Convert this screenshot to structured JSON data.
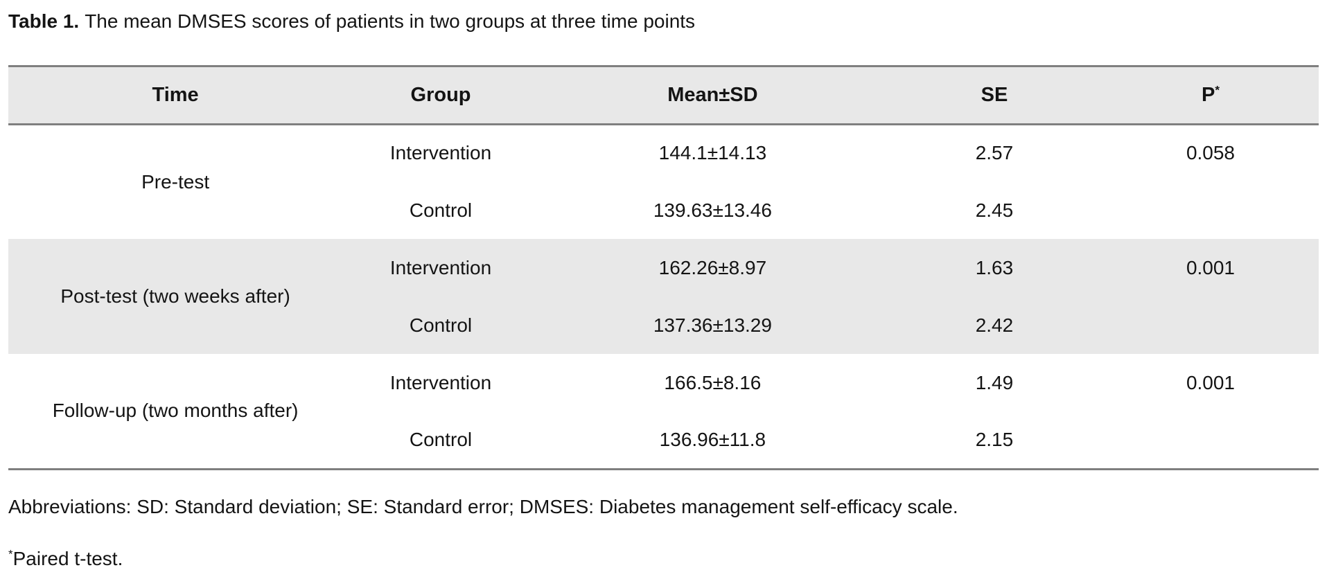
{
  "title": {
    "label": "Table 1.",
    "text": "The mean DMSES scores of patients in two groups at three time points"
  },
  "table": {
    "columns": [
      "Time",
      "Group",
      "Mean±SD",
      "SE",
      "P"
    ],
    "p_superscript": "*",
    "sections": [
      {
        "time": "Pre-test",
        "shaded": false,
        "rows": [
          {
            "group": "Intervention",
            "mean_sd": "144.1±14.13",
            "se": "2.57",
            "p": "0.058"
          },
          {
            "group": "Control",
            "mean_sd": "139.63±13.46",
            "se": "2.45",
            "p": ""
          }
        ]
      },
      {
        "time": "Post-test (two weeks after)",
        "shaded": true,
        "rows": [
          {
            "group": "Intervention",
            "mean_sd": "162.26±8.97",
            "se": "1.63",
            "p": "0.001"
          },
          {
            "group": "Control",
            "mean_sd": "137.36±13.29",
            "se": "2.42",
            "p": ""
          }
        ]
      },
      {
        "time": "Follow-up (two months after)",
        "shaded": false,
        "rows": [
          {
            "group": "Intervention",
            "mean_sd": "166.5±8.16",
            "se": "1.49",
            "p": "0.001"
          },
          {
            "group": "Control",
            "mean_sd": "136.96±11.8",
            "se": "2.15",
            "p": ""
          }
        ]
      }
    ]
  },
  "footnotes": {
    "abbreviations": "Abbreviations: SD: Standard deviation; SE: Standard error; DMSES: Diabetes management self-efficacy scale.",
    "paired_marker": "*",
    "paired_text": "Paired t-test."
  },
  "colors": {
    "shaded_bg": "#e8e8e8",
    "rule": "#7f7f7f",
    "text": "#141414"
  }
}
